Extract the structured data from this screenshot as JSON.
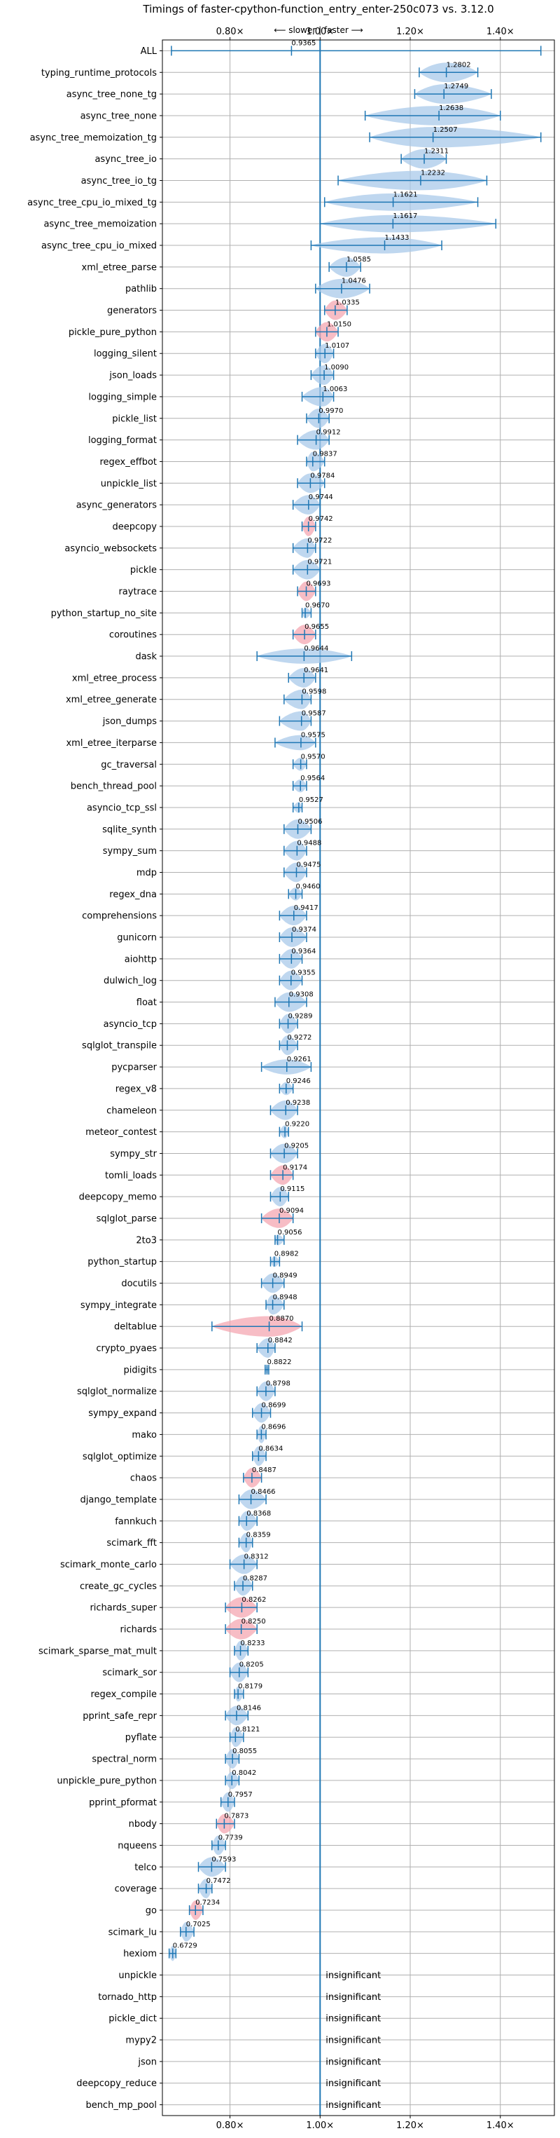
{
  "chart_data": {
    "type": "violin",
    "title": "Timings of faster-cpython-function_entry_enter-250c073 vs. 3.12.0",
    "direction_hint": "⟵ slower | faster ⟶",
    "xlim": [
      0.65,
      1.52
    ],
    "x_ticks": [
      0.8,
      1.0,
      1.2,
      1.4
    ],
    "x_tick_labels": [
      "0.80×",
      "1.00×",
      "1.20×",
      "1.40×"
    ],
    "reference_line": 1.0,
    "grid": true,
    "colors": {
      "normal": "#a9c9ea",
      "slower_highlight": "#f4a7b2",
      "stats_line": "#1f77b4",
      "reference": "#1f77b4"
    },
    "series": [
      {
        "name": "ALL",
        "mean": 0.9365,
        "min": 0.67,
        "max": 1.49,
        "width": 0.02,
        "highlight": false
      },
      {
        "name": "typing_runtime_protocols",
        "mean": 1.2802,
        "min": 1.22,
        "max": 1.35,
        "width": 0.9,
        "highlight": false
      },
      {
        "name": "async_tree_none_tg",
        "mean": 1.2749,
        "min": 1.21,
        "max": 1.38,
        "width": 0.9,
        "highlight": false
      },
      {
        "name": "async_tree_none",
        "mean": 1.2638,
        "min": 1.1,
        "max": 1.4,
        "width": 0.9,
        "highlight": false
      },
      {
        "name": "async_tree_memoization_tg",
        "mean": 1.2507,
        "min": 1.11,
        "max": 1.49,
        "width": 0.95,
        "highlight": false
      },
      {
        "name": "async_tree_io",
        "mean": 1.2311,
        "min": 1.18,
        "max": 1.28,
        "width": 0.9,
        "highlight": false
      },
      {
        "name": "async_tree_io_tg",
        "mean": 1.2232,
        "min": 1.04,
        "max": 1.37,
        "width": 0.9,
        "highlight": false
      },
      {
        "name": "async_tree_cpu_io_mixed_tg",
        "mean": 1.1621,
        "min": 1.01,
        "max": 1.35,
        "width": 0.8,
        "highlight": false
      },
      {
        "name": "async_tree_memoization",
        "mean": 1.1617,
        "min": 1.0,
        "max": 1.39,
        "width": 0.8,
        "highlight": false
      },
      {
        "name": "async_tree_cpu_io_mixed",
        "mean": 1.1433,
        "min": 0.98,
        "max": 1.27,
        "width": 0.75,
        "highlight": false
      },
      {
        "name": "xml_etree_parse",
        "mean": 1.0585,
        "min": 1.02,
        "max": 1.09,
        "width": 0.9,
        "highlight": false
      },
      {
        "name": "pathlib",
        "mean": 1.0476,
        "min": 0.99,
        "max": 1.11,
        "width": 0.9,
        "highlight": false
      },
      {
        "name": "generators",
        "mean": 1.0335,
        "min": 1.01,
        "max": 1.06,
        "width": 0.9,
        "highlight": true
      },
      {
        "name": "pickle_pure_python",
        "mean": 1.015,
        "min": 0.99,
        "max": 1.04,
        "width": 0.9,
        "highlight": true
      },
      {
        "name": "logging_silent",
        "mean": 1.0107,
        "min": 0.99,
        "max": 1.03,
        "width": 0.9,
        "highlight": false
      },
      {
        "name": "json_loads",
        "mean": 1.009,
        "min": 0.98,
        "max": 1.03,
        "width": 0.9,
        "highlight": false
      },
      {
        "name": "logging_simple",
        "mean": 1.0063,
        "min": 0.96,
        "max": 1.03,
        "width": 0.9,
        "highlight": false
      },
      {
        "name": "pickle_list",
        "mean": 0.997,
        "min": 0.97,
        "max": 1.02,
        "width": 0.9,
        "highlight": false
      },
      {
        "name": "logging_format",
        "mean": 0.9912,
        "min": 0.95,
        "max": 1.02,
        "width": 0.9,
        "highlight": false
      },
      {
        "name": "regex_effbot",
        "mean": 0.9837,
        "min": 0.97,
        "max": 1.01,
        "width": 0.9,
        "highlight": false
      },
      {
        "name": "unpickle_list",
        "mean": 0.9784,
        "min": 0.95,
        "max": 1.01,
        "width": 0.9,
        "highlight": false
      },
      {
        "name": "async_generators",
        "mean": 0.9744,
        "min": 0.94,
        "max": 1.0,
        "width": 0.9,
        "highlight": false
      },
      {
        "name": "deepcopy",
        "mean": 0.9742,
        "min": 0.96,
        "max": 0.99,
        "width": 0.9,
        "highlight": true
      },
      {
        "name": "asyncio_websockets",
        "mean": 0.9722,
        "min": 0.94,
        "max": 0.99,
        "width": 0.9,
        "highlight": false
      },
      {
        "name": "pickle",
        "mean": 0.9721,
        "min": 0.94,
        "max": 1.0,
        "width": 0.9,
        "highlight": false
      },
      {
        "name": "raytrace",
        "mean": 0.9693,
        "min": 0.95,
        "max": 0.99,
        "width": 0.9,
        "highlight": true
      },
      {
        "name": "python_startup_no_site",
        "mean": 0.967,
        "min": 0.96,
        "max": 0.98,
        "width": 0.5,
        "highlight": false
      },
      {
        "name": "coroutines",
        "mean": 0.9655,
        "min": 0.94,
        "max": 0.99,
        "width": 0.9,
        "highlight": true
      },
      {
        "name": "dask",
        "mean": 0.9644,
        "min": 0.86,
        "max": 1.07,
        "width": 0.7,
        "highlight": false
      },
      {
        "name": "xml_etree_process",
        "mean": 0.9641,
        "min": 0.93,
        "max": 0.99,
        "width": 0.9,
        "highlight": false
      },
      {
        "name": "xml_etree_generate",
        "mean": 0.9598,
        "min": 0.92,
        "max": 0.98,
        "width": 0.9,
        "highlight": false
      },
      {
        "name": "json_dumps",
        "mean": 0.9587,
        "min": 0.91,
        "max": 0.98,
        "width": 0.9,
        "highlight": false
      },
      {
        "name": "xml_etree_iterparse",
        "mean": 0.9575,
        "min": 0.9,
        "max": 0.99,
        "width": 0.7,
        "highlight": false
      },
      {
        "name": "gc_traversal",
        "mean": 0.957,
        "min": 0.94,
        "max": 0.97,
        "width": 0.6,
        "highlight": false
      },
      {
        "name": "bench_thread_pool",
        "mean": 0.9564,
        "min": 0.94,
        "max": 0.97,
        "width": 0.6,
        "highlight": false
      },
      {
        "name": "asyncio_tcp_ssl",
        "mean": 0.9527,
        "min": 0.94,
        "max": 0.96,
        "width": 0.5,
        "highlight": false
      },
      {
        "name": "sqlite_synth",
        "mean": 0.9506,
        "min": 0.92,
        "max": 0.98,
        "width": 0.9,
        "highlight": false
      },
      {
        "name": "sympy_sum",
        "mean": 0.9488,
        "min": 0.92,
        "max": 0.97,
        "width": 0.9,
        "highlight": false
      },
      {
        "name": "mdp",
        "mean": 0.9475,
        "min": 0.92,
        "max": 0.97,
        "width": 0.9,
        "highlight": false
      },
      {
        "name": "regex_dna",
        "mean": 0.946,
        "min": 0.93,
        "max": 0.96,
        "width": 0.6,
        "highlight": false
      },
      {
        "name": "comprehensions",
        "mean": 0.9417,
        "min": 0.91,
        "max": 0.97,
        "width": 0.9,
        "highlight": false
      },
      {
        "name": "gunicorn",
        "mean": 0.9374,
        "min": 0.91,
        "max": 0.97,
        "width": 0.9,
        "highlight": false
      },
      {
        "name": "aiohttp",
        "mean": 0.9364,
        "min": 0.91,
        "max": 0.96,
        "width": 0.9,
        "highlight": false
      },
      {
        "name": "dulwich_log",
        "mean": 0.9355,
        "min": 0.91,
        "max": 0.96,
        "width": 0.9,
        "highlight": false
      },
      {
        "name": "float",
        "mean": 0.9308,
        "min": 0.9,
        "max": 0.97,
        "width": 0.9,
        "highlight": false
      },
      {
        "name": "asyncio_tcp",
        "mean": 0.9289,
        "min": 0.91,
        "max": 0.95,
        "width": 0.9,
        "highlight": false
      },
      {
        "name": "sqlglot_transpile",
        "mean": 0.9272,
        "min": 0.91,
        "max": 0.95,
        "width": 0.9,
        "highlight": false
      },
      {
        "name": "pycparser",
        "mean": 0.9261,
        "min": 0.87,
        "max": 0.98,
        "width": 0.7,
        "highlight": false
      },
      {
        "name": "regex_v8",
        "mean": 0.9246,
        "min": 0.91,
        "max": 0.94,
        "width": 0.6,
        "highlight": false
      },
      {
        "name": "chameleon",
        "mean": 0.9238,
        "min": 0.89,
        "max": 0.95,
        "width": 0.9,
        "highlight": false
      },
      {
        "name": "meteor_contest",
        "mean": 0.922,
        "min": 0.91,
        "max": 0.93,
        "width": 0.6,
        "highlight": false
      },
      {
        "name": "sympy_str",
        "mean": 0.9205,
        "min": 0.89,
        "max": 0.95,
        "width": 0.9,
        "highlight": false
      },
      {
        "name": "tomli_loads",
        "mean": 0.9174,
        "min": 0.89,
        "max": 0.94,
        "width": 0.9,
        "highlight": true
      },
      {
        "name": "deepcopy_memo",
        "mean": 0.9115,
        "min": 0.89,
        "max": 0.93,
        "width": 0.9,
        "highlight": false
      },
      {
        "name": "sqlglot_parse",
        "mean": 0.9094,
        "min": 0.87,
        "max": 0.94,
        "width": 0.9,
        "highlight": true
      },
      {
        "name": "2to3",
        "mean": 0.9056,
        "min": 0.9,
        "max": 0.92,
        "width": 0.5,
        "highlight": false
      },
      {
        "name": "python_startup",
        "mean": 0.8982,
        "min": 0.89,
        "max": 0.91,
        "width": 0.5,
        "highlight": false
      },
      {
        "name": "docutils",
        "mean": 0.8949,
        "min": 0.87,
        "max": 0.92,
        "width": 0.9,
        "highlight": false
      },
      {
        "name": "sympy_integrate",
        "mean": 0.8948,
        "min": 0.88,
        "max": 0.92,
        "width": 0.9,
        "highlight": false
      },
      {
        "name": "deltablue",
        "mean": 0.887,
        "min": 0.76,
        "max": 0.96,
        "width": 0.95,
        "highlight": true
      },
      {
        "name": "crypto_pyaes",
        "mean": 0.8842,
        "min": 0.86,
        "max": 0.9,
        "width": 0.9,
        "highlight": false
      },
      {
        "name": "pidigits",
        "mean": 0.8822,
        "min": 0.878,
        "max": 0.886,
        "width": 0.4,
        "highlight": false
      },
      {
        "name": "sqlglot_normalize",
        "mean": 0.8798,
        "min": 0.86,
        "max": 0.9,
        "width": 0.9,
        "highlight": false
      },
      {
        "name": "sympy_expand",
        "mean": 0.8699,
        "min": 0.85,
        "max": 0.89,
        "width": 0.9,
        "highlight": false
      },
      {
        "name": "mako",
        "mean": 0.8696,
        "min": 0.86,
        "max": 0.88,
        "width": 0.8,
        "highlight": false
      },
      {
        "name": "sqlglot_optimize",
        "mean": 0.8634,
        "min": 0.85,
        "max": 0.88,
        "width": 0.9,
        "highlight": false
      },
      {
        "name": "chaos",
        "mean": 0.8487,
        "min": 0.83,
        "max": 0.87,
        "width": 0.9,
        "highlight": true
      },
      {
        "name": "django_template",
        "mean": 0.8466,
        "min": 0.82,
        "max": 0.88,
        "width": 0.9,
        "highlight": false
      },
      {
        "name": "fannkuch",
        "mean": 0.8368,
        "min": 0.82,
        "max": 0.86,
        "width": 0.9,
        "highlight": false
      },
      {
        "name": "scimark_fft",
        "mean": 0.8359,
        "min": 0.82,
        "max": 0.85,
        "width": 0.9,
        "highlight": false
      },
      {
        "name": "scimark_monte_carlo",
        "mean": 0.8312,
        "min": 0.8,
        "max": 0.86,
        "width": 0.9,
        "highlight": false
      },
      {
        "name": "create_gc_cycles",
        "mean": 0.8287,
        "min": 0.81,
        "max": 0.85,
        "width": 0.9,
        "highlight": false
      },
      {
        "name": "richards_super",
        "mean": 0.8262,
        "min": 0.79,
        "max": 0.86,
        "width": 0.95,
        "highlight": true
      },
      {
        "name": "richards",
        "mean": 0.825,
        "min": 0.79,
        "max": 0.86,
        "width": 0.95,
        "highlight": true
      },
      {
        "name": "scimark_sparse_mat_mult",
        "mean": 0.8233,
        "min": 0.81,
        "max": 0.84,
        "width": 0.9,
        "highlight": false
      },
      {
        "name": "scimark_sor",
        "mean": 0.8205,
        "min": 0.8,
        "max": 0.84,
        "width": 0.9,
        "highlight": false
      },
      {
        "name": "regex_compile",
        "mean": 0.8179,
        "min": 0.81,
        "max": 0.83,
        "width": 0.7,
        "highlight": false
      },
      {
        "name": "pprint_safe_repr",
        "mean": 0.8146,
        "min": 0.79,
        "max": 0.84,
        "width": 0.9,
        "highlight": false
      },
      {
        "name": "pyflate",
        "mean": 0.8121,
        "min": 0.8,
        "max": 0.83,
        "width": 0.9,
        "highlight": false
      },
      {
        "name": "spectral_norm",
        "mean": 0.8055,
        "min": 0.79,
        "max": 0.82,
        "width": 0.9,
        "highlight": false
      },
      {
        "name": "unpickle_pure_python",
        "mean": 0.8042,
        "min": 0.79,
        "max": 0.82,
        "width": 0.8,
        "highlight": false
      },
      {
        "name": "pprint_pformat",
        "mean": 0.7957,
        "min": 0.78,
        "max": 0.81,
        "width": 0.9,
        "highlight": false
      },
      {
        "name": "nbody",
        "mean": 0.7873,
        "min": 0.77,
        "max": 0.81,
        "width": 0.9,
        "highlight": true
      },
      {
        "name": "nqueens",
        "mean": 0.7739,
        "min": 0.76,
        "max": 0.79,
        "width": 0.9,
        "highlight": false
      },
      {
        "name": "telco",
        "mean": 0.7593,
        "min": 0.73,
        "max": 0.79,
        "width": 0.9,
        "highlight": false
      },
      {
        "name": "coverage",
        "mean": 0.7472,
        "min": 0.73,
        "max": 0.76,
        "width": 0.9,
        "highlight": false
      },
      {
        "name": "go",
        "mean": 0.7234,
        "min": 0.71,
        "max": 0.74,
        "width": 0.9,
        "highlight": true
      },
      {
        "name": "scimark_lu",
        "mean": 0.7025,
        "min": 0.69,
        "max": 0.72,
        "width": 0.9,
        "highlight": false
      },
      {
        "name": "hexiom",
        "mean": 0.6729,
        "min": 0.665,
        "max": 0.68,
        "width": 0.7,
        "highlight": false
      },
      {
        "name": "unpickle",
        "insignificant": true
      },
      {
        "name": "tornado_http",
        "insignificant": true
      },
      {
        "name": "pickle_dict",
        "insignificant": true
      },
      {
        "name": "mypy2",
        "insignificant": true
      },
      {
        "name": "json",
        "insignificant": true
      },
      {
        "name": "deepcopy_reduce",
        "insignificant": true
      },
      {
        "name": "bench_mp_pool",
        "insignificant": true
      }
    ],
    "insignificant_label": "insignificant"
  }
}
